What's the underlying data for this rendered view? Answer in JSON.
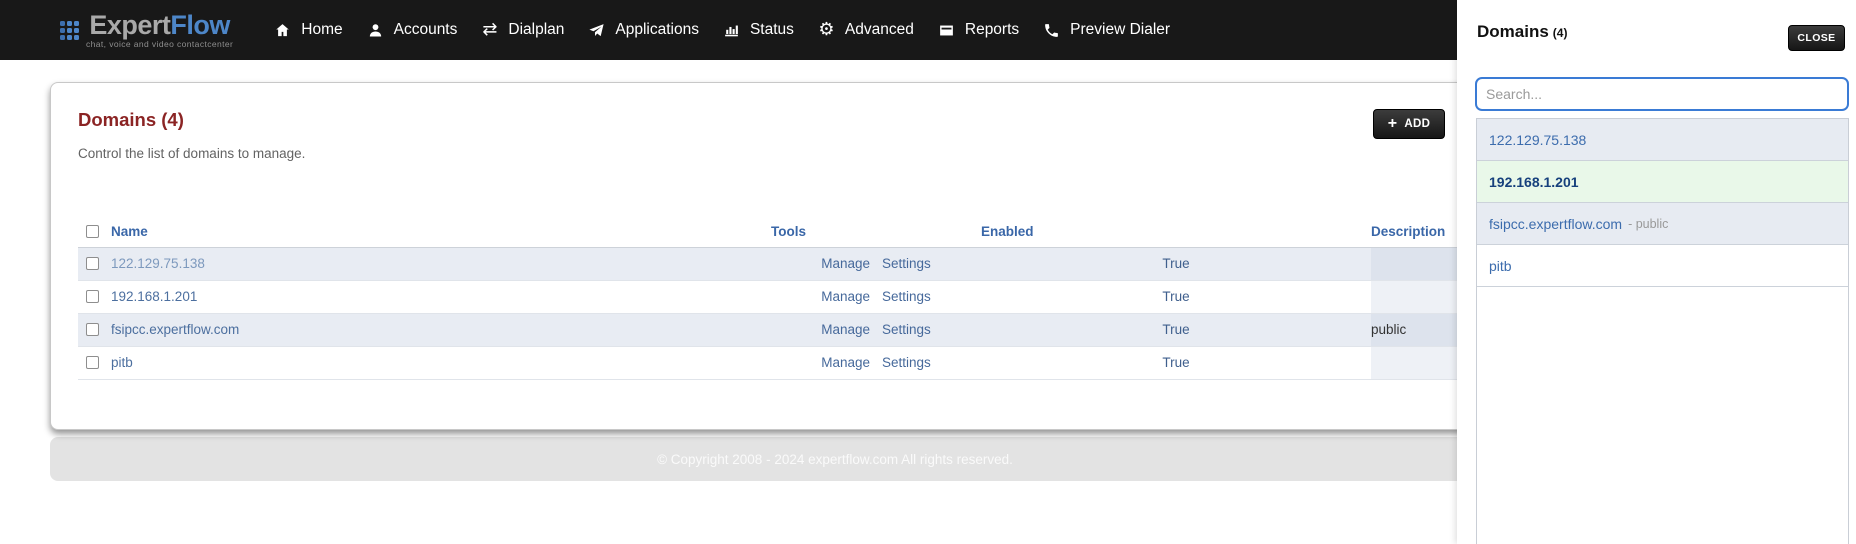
{
  "brand": {
    "name_primary": "Expert",
    "name_secondary": "Flow",
    "tagline": "chat, voice and video contactcenter"
  },
  "nav": {
    "items": [
      {
        "label": "Home",
        "icon": "home-icon"
      },
      {
        "label": "Accounts",
        "icon": "accounts-icon"
      },
      {
        "label": "Dialplan",
        "icon": "dialplan-icon"
      },
      {
        "label": "Applications",
        "icon": "applications-icon"
      },
      {
        "label": "Status",
        "icon": "status-icon"
      },
      {
        "label": "Advanced",
        "icon": "advanced-icon"
      },
      {
        "label": "Reports",
        "icon": "reports-icon"
      },
      {
        "label": "Preview Dialer",
        "icon": "phone-icon"
      }
    ]
  },
  "card": {
    "title": "Domains (4)",
    "subtitle": "Control the list of domains to manage.",
    "add_button": {
      "plus": "+",
      "label": "ADD"
    },
    "table": {
      "columns": [
        "Name",
        "Tools",
        "Enabled",
        "Description"
      ],
      "rows": [
        {
          "name": "122.129.75.138",
          "tools": [
            "Manage",
            "Settings"
          ],
          "enabled": "True",
          "description": ""
        },
        {
          "name": "192.168.1.201",
          "tools": [
            "Manage",
            "Settings"
          ],
          "enabled": "True",
          "description": ""
        },
        {
          "name": "fsipcc.expertflow.com",
          "tools": [
            "Manage",
            "Settings"
          ],
          "enabled": "True",
          "description": "public"
        },
        {
          "name": "pitb",
          "tools": [
            "Manage",
            "Settings"
          ],
          "enabled": "True",
          "description": ""
        }
      ]
    }
  },
  "footer": {
    "copyright": "© Copyright 2008 - 2024 expertflow.com All rights reserved."
  },
  "panel": {
    "title": "Domains",
    "count": "(4)",
    "close_button": "CLOSE",
    "search": {
      "placeholder": "Search...",
      "value": ""
    },
    "items": [
      {
        "label": "122.129.75.138",
        "suffix": "",
        "state": "striped"
      },
      {
        "label": "192.168.1.201",
        "suffix": "",
        "state": "selected"
      },
      {
        "label": "fsipcc.expertflow.com",
        "suffix": "- public",
        "state": "striped"
      },
      {
        "label": "pitb",
        "suffix": "",
        "state": "plain"
      }
    ]
  },
  "colors": {
    "navbar_bg": "#181818",
    "brand_gray": "#a9a9a9",
    "brand_blue": "#4d86c8",
    "brand_tagline": "#8f8f8f",
    "nav_text": "#ffffff",
    "heading_maroon": "#8b2424",
    "subtitle_gray": "#636363",
    "table_header_blue": "#3a67a8",
    "link_blue": "#4c6f9f",
    "link_blue_light": "#7d99bd",
    "tools_link": "#46699b",
    "enabled_text": "#3f5f8d",
    "desc_text": "#333333",
    "stripe_bg": "#e8ecf3",
    "stripe_desc_bg": "#dde3ed",
    "white_desc_bg": "#eef1f6",
    "row_border": "#e0e4ea",
    "selected_bg": "#e9f8e9",
    "selected_text": "#16407c",
    "panel_stripe_bg": "#e7ebf2",
    "panel_link": "#3c6cad",
    "panel_suffix_gray": "#999999",
    "search_border": "#3a7bd5",
    "placeholder_gray": "#9a9a9a",
    "footer_bg": "#e3e3e3",
    "footer_text": "#fafafa"
  }
}
